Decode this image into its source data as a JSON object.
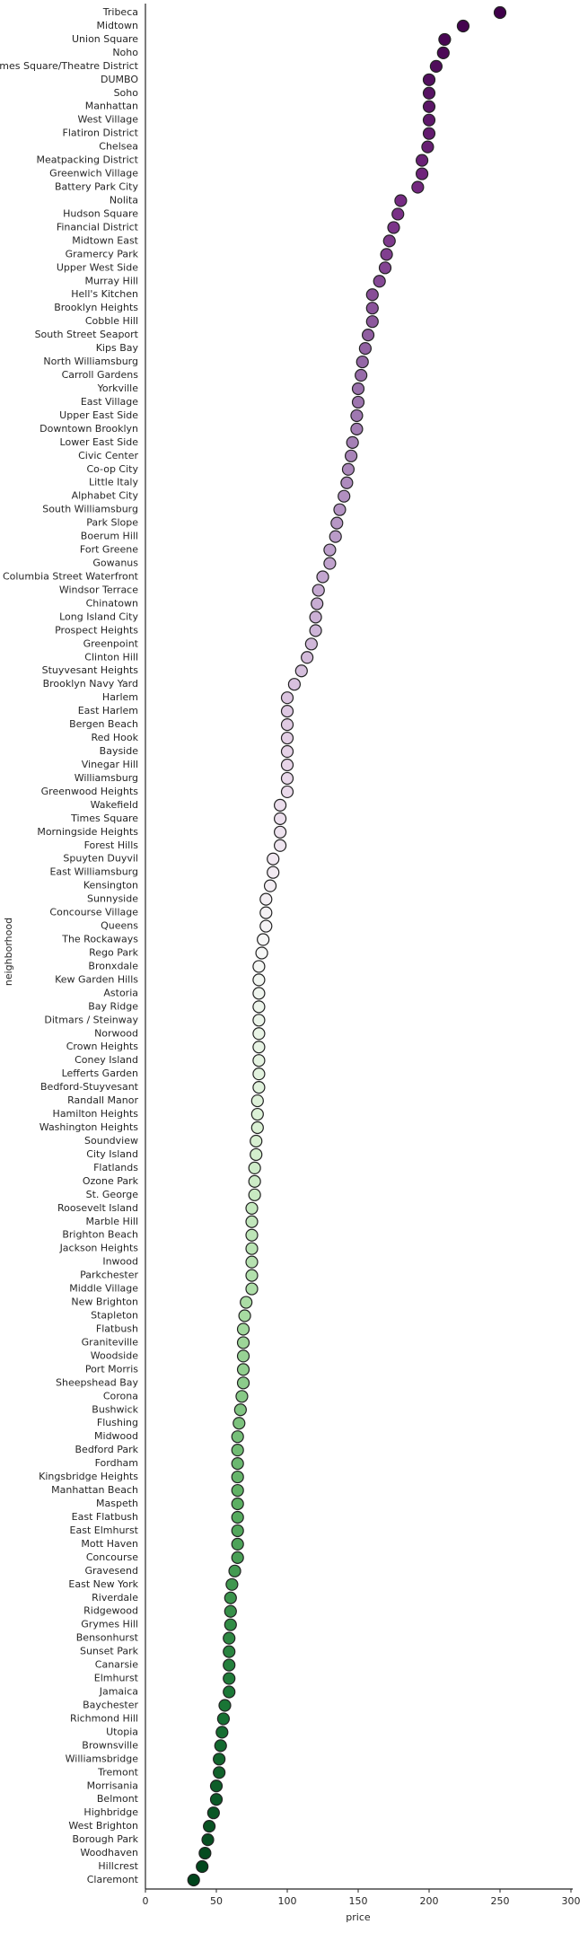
{
  "chart_data": {
    "type": "dot",
    "x_label": "price",
    "y_label": "neighborhood",
    "categories": [
      "Tribeca",
      "Midtown",
      "Union Square",
      "Noho",
      "Times Square/Theatre District",
      "DUMBO",
      "Soho",
      "Manhattan",
      "West Village",
      "Flatiron District",
      "Chelsea",
      "Meatpacking District",
      "Greenwich Village",
      "Battery Park City",
      "Nolita",
      "Hudson Square",
      "Financial District",
      "Midtown East",
      "Gramercy Park",
      "Upper West Side",
      "Murray Hill",
      "Hell's Kitchen",
      "Brooklyn Heights",
      "Cobble Hill",
      "South Street Seaport",
      "Kips Bay",
      "North Williamsburg",
      "Carroll Gardens",
      "Yorkville",
      "East Village",
      "Upper East Side",
      "Downtown Brooklyn",
      "Lower East Side",
      "Civic Center",
      "Co-op City",
      "Little Italy",
      "Alphabet City",
      "South Williamsburg",
      "Park Slope",
      "Boerum Hill",
      "Fort Greene",
      "Gowanus",
      "Columbia Street Waterfront",
      "Windsor Terrace",
      "Chinatown",
      "Long Island City",
      "Prospect Heights",
      "Greenpoint",
      "Clinton Hill",
      "Stuyvesant Heights",
      "Brooklyn Navy Yard",
      "Harlem",
      "East Harlem",
      "Bergen Beach",
      "Red Hook",
      "Bayside",
      "Vinegar Hill",
      "Williamsburg",
      "Greenwood Heights",
      "Wakefield",
      "Times Square",
      "Morningside Heights",
      "Forest Hills",
      "Spuyten Duyvil",
      "East Williamsburg",
      "Kensington",
      "Sunnyside",
      "Concourse Village",
      "Queens",
      "The Rockaways",
      "Rego Park",
      "Bronxdale",
      "Kew Garden Hills",
      "Astoria",
      "Bay Ridge",
      "Ditmars / Steinway",
      "Norwood",
      "Crown Heights",
      "Coney Island",
      "Lefferts Garden",
      "Bedford-Stuyvesant",
      "Randall Manor",
      "Hamilton Heights",
      "Washington Heights",
      "Soundview",
      "City Island",
      "Flatlands",
      "Ozone Park",
      "St. George",
      "Roosevelt Island",
      "Marble Hill",
      "Brighton Beach",
      "Jackson Heights",
      "Inwood",
      "Parkchester",
      "Middle Village",
      "New Brighton",
      "Stapleton",
      "Flatbush",
      "Graniteville",
      "Woodside",
      "Port Morris",
      "Sheepshead Bay",
      "Corona",
      "Bushwick",
      "Flushing",
      "Midwood",
      "Bedford Park",
      "Fordham",
      "Kingsbridge Heights",
      "Manhattan Beach",
      "Maspeth",
      "East Flatbush",
      "East Elmhurst",
      "Mott Haven",
      "Concourse",
      "Gravesend",
      "East New York",
      "Riverdale",
      "Ridgewood",
      "Grymes Hill",
      "Bensonhurst",
      "Sunset Park",
      "Canarsie",
      "Elmhurst",
      "Jamaica",
      "Baychester",
      "Richmond Hill",
      "Utopia",
      "Brownsville",
      "Williamsbridge",
      "Tremont",
      "Morrisania",
      "Belmont",
      "Highbridge",
      "West Brighton",
      "Borough Park",
      "Woodhaven",
      "Hillcrest",
      "Claremont"
    ],
    "values": [
      250,
      224,
      211,
      210,
      205,
      200,
      200,
      200,
      200,
      200,
      199,
      195,
      195,
      192,
      180,
      178,
      175,
      172,
      170,
      169,
      165,
      160,
      160,
      160,
      157,
      155,
      153,
      152,
      150,
      150,
      149,
      149,
      146,
      145,
      143,
      142,
      140,
      137,
      135,
      134,
      130,
      130,
      125,
      122,
      121,
      120,
      120,
      117,
      114,
      110,
      105,
      100,
      100,
      100,
      100,
      100,
      100,
      100,
      100,
      95,
      95,
      95,
      95,
      90,
      90,
      88,
      85,
      85,
      85,
      83,
      82,
      80,
      80,
      80,
      80,
      80,
      80,
      80,
      80,
      80,
      80,
      79,
      79,
      79,
      78,
      78,
      77,
      77,
      77,
      75,
      75,
      75,
      75,
      75,
      75,
      75,
      71,
      70,
      69,
      69,
      69,
      69,
      69,
      68,
      67,
      66,
      65,
      65,
      65,
      65,
      65,
      65,
      65,
      65,
      65,
      65,
      63,
      61,
      60,
      60,
      60,
      59,
      59,
      59,
      59,
      59,
      56,
      55,
      54,
      53,
      52,
      52,
      50,
      50,
      48,
      45,
      44,
      42,
      40,
      34
    ],
    "palette": [
      "#40004b",
      "#762a83",
      "#9970ab",
      "#c2a5cf",
      "#e7d4e8",
      "#f7f7f7",
      "#d9f0d3",
      "#a6dba0",
      "#5aae61",
      "#1b7837",
      "#00441b"
    ],
    "xlim": [
      0,
      300
    ],
    "xticks": [
      0,
      50,
      100,
      150,
      200,
      250,
      300
    ],
    "grid": false
  }
}
